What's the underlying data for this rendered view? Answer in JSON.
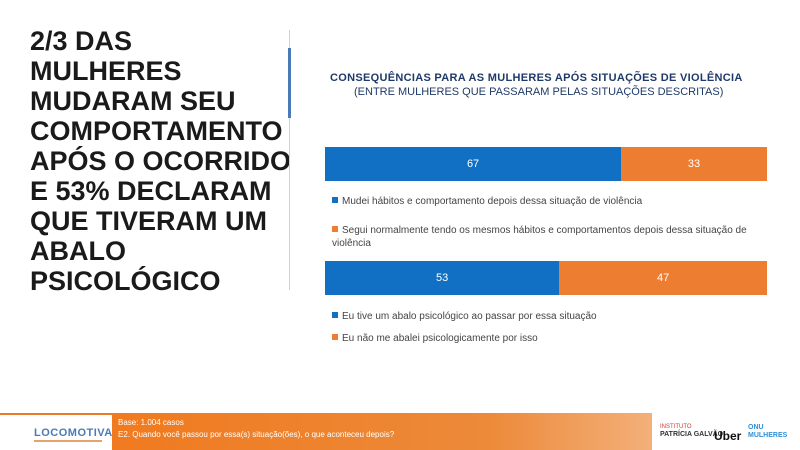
{
  "headline_lines": [
    "2/3 DAS",
    "MULHERES",
    "MUDARAM SEU",
    "COMPORTAMENTO",
    "APÓS O OCORRIDO",
    "E 53% DECLARAM",
    "QUE TIVERAM UM",
    "ABALO",
    "PSICOLÓGICO"
  ],
  "colors": {
    "blue": "#1170c4",
    "orange": "#ed7d31",
    "title_navy": "#1f3a68",
    "footer_orange": "#f07a1f"
  },
  "chart_data": {
    "type": "bar",
    "orientation": "horizontal-stacked-100",
    "title": "CONSEQUÊNCIAS  PARA AS MULHERES APÓS SITUAÇÕES  DE VIOLÊNCIA",
    "subtitle": "(ENTRE MULHERES QUE PASSARAM PELAS SITUAÇÕES DESCRITAS)",
    "bars": [
      {
        "segments": [
          {
            "value": 67,
            "label": "67",
            "color": "#1170c4"
          },
          {
            "value": 33,
            "label": "33",
            "color": "#ed7d31"
          }
        ],
        "legend": [
          {
            "text": "Mudei hábitos e comportamento depois dessa situação de violência",
            "color": "#1170c4"
          },
          {
            "text": "Segui normalmente tendo os mesmos hábitos e comportamentos depois dessa situação de violência",
            "color": "#ed7d31"
          }
        ]
      },
      {
        "segments": [
          {
            "value": 53,
            "label": "53",
            "color": "#1170c4"
          },
          {
            "value": 47,
            "label": "47",
            "color": "#ed7d31"
          }
        ],
        "legend": [
          {
            "text": "Eu tive um abalo psicológico ao passar por essa situação",
            "color": "#1170c4"
          },
          {
            "text": "Eu não me abalei psicologicamente por isso",
            "color": "#ed7d31"
          }
        ]
      }
    ]
  },
  "footer": {
    "logo": "LOCOMOTIVA",
    "base": "Base: 1.004 casos",
    "question": "E2. Quando você passou por essa(s) situação(ões), o que aconteceu depois?",
    "partner_1_top": "INSTITUTO",
    "partner_1": "PATRÍCIA GALVÃO",
    "partner_2": "Uber",
    "partner_3_top": "ONU",
    "partner_3": "MULHERES"
  }
}
